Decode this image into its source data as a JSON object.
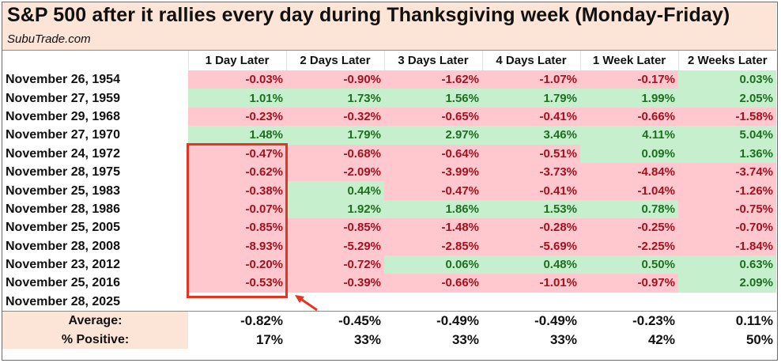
{
  "title": "S&P 500 after it rallies every day during Thanksgiving week (Monday-Friday)",
  "subtitle": "SubuTrade.com",
  "columns": [
    "1 Day Later",
    "2 Days Later",
    "3 Days Later",
    "4 Days Later",
    "1 Week Later",
    "2 Weeks Later"
  ],
  "rows": [
    {
      "date": "November 26, 1954",
      "values": [
        "-0.03%",
        "-0.90%",
        "-1.62%",
        "-1.07%",
        "-0.17%",
        "0.03%"
      ]
    },
    {
      "date": "November 27, 1959",
      "values": [
        "1.01%",
        "1.73%",
        "1.56%",
        "1.79%",
        "1.99%",
        "2.05%"
      ]
    },
    {
      "date": "November 29, 1968",
      "values": [
        "-0.23%",
        "-0.32%",
        "-0.65%",
        "-0.41%",
        "-0.66%",
        "-1.58%"
      ]
    },
    {
      "date": "November 27, 1970",
      "values": [
        "1.48%",
        "1.79%",
        "2.97%",
        "3.46%",
        "4.11%",
        "5.04%"
      ]
    },
    {
      "date": "November 24, 1972",
      "values": [
        "-0.47%",
        "-0.68%",
        "-0.64%",
        "-0.51%",
        "0.09%",
        "1.36%"
      ]
    },
    {
      "date": "November 28, 1975",
      "values": [
        "-0.62%",
        "-2.09%",
        "-3.99%",
        "-3.73%",
        "-4.84%",
        "-3.74%"
      ]
    },
    {
      "date": "November 25, 1983",
      "values": [
        "-0.38%",
        "0.44%",
        "-0.47%",
        "-0.41%",
        "-1.04%",
        "-1.26%"
      ]
    },
    {
      "date": "November 28, 1986",
      "values": [
        "-0.07%",
        "1.92%",
        "1.86%",
        "1.53%",
        "0.78%",
        "-0.75%"
      ]
    },
    {
      "date": "November 25, 2005",
      "values": [
        "-0.85%",
        "-0.85%",
        "-1.48%",
        "-0.28%",
        "-0.25%",
        "-0.70%"
      ]
    },
    {
      "date": "November 28, 2008",
      "values": [
        "-8.93%",
        "-5.29%",
        "-2.85%",
        "-5.69%",
        "-2.25%",
        "-1.84%"
      ]
    },
    {
      "date": "November 23, 2012",
      "values": [
        "-0.20%",
        "-0.72%",
        "0.06%",
        "0.48%",
        "0.50%",
        "0.63%"
      ]
    },
    {
      "date": "November 25, 2016",
      "values": [
        "-0.53%",
        "-0.39%",
        "-0.66%",
        "-1.01%",
        "-0.97%",
        "2.09%"
      ]
    },
    {
      "date": "November 28, 2025",
      "values": [
        "",
        "",
        "",
        "",
        "",
        ""
      ]
    }
  ],
  "footer": [
    {
      "label": "Average:",
      "values": [
        "-0.82%",
        "-0.45%",
        "-0.49%",
        "-0.49%",
        "-0.23%",
        "0.11%"
      ]
    },
    {
      "label": "% Positive:",
      "values": [
        "17%",
        "33%",
        "33%",
        "33%",
        "42%",
        "50%"
      ]
    }
  ],
  "colors": {
    "title_band": "#fce4d6",
    "negative_fill": "#ffc7ce",
    "negative_text": "#a5101c",
    "positive_fill": "#c6efce",
    "positive_text": "#1f6e1f",
    "highlight_box": "#e8331f"
  },
  "annotations": {
    "highlight": "red box around 1 Day Later values for 1972–2016",
    "arrow": "red arrow pointing to highlight box"
  }
}
